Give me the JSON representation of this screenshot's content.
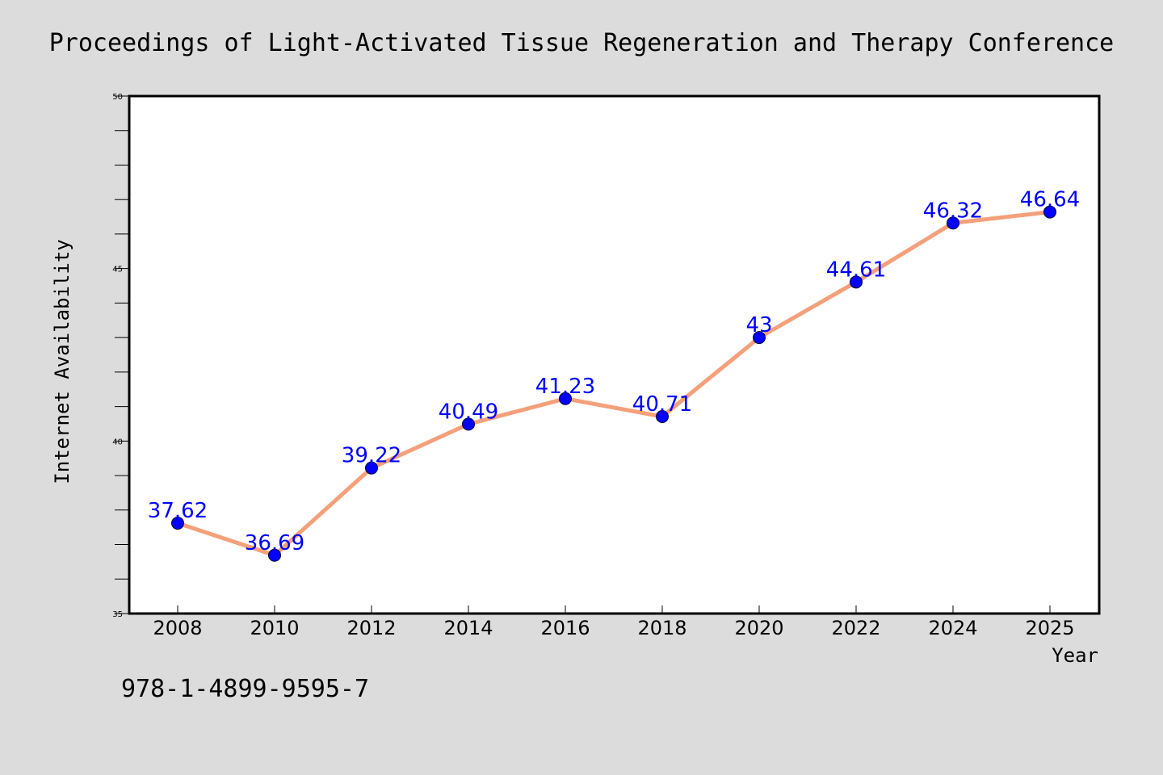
{
  "chart_data": {
    "type": "line",
    "title": "Proceedings of Light-Activated Tissue Regeneration and Therapy Conference",
    "xlabel": "Year",
    "ylabel": "Internet Availability",
    "categories": [
      "2008",
      "2010",
      "2012",
      "2014",
      "2016",
      "2018",
      "2020",
      "2022",
      "2024",
      "2025"
    ],
    "series": [
      {
        "values": [
          37.62,
          36.69,
          39.22,
          40.49,
          41.23,
          40.71,
          43,
          44.61,
          46.32,
          46.64
        ],
        "data_labels": [
          "37.62",
          "36.69",
          "39.22",
          "40.49",
          "41.23",
          "40.71",
          "43",
          "44.61",
          "46.32",
          "46.64"
        ]
      }
    ],
    "ylim": [
      35,
      50
    ],
    "yticks": [
      "35",
      "40",
      "45",
      "50"
    ],
    "grid": false,
    "legend": "none",
    "colors": {
      "line": "#f4a07a",
      "marker": "#0000ff",
      "data_label": "#0000ff",
      "background": "#dcdcdc",
      "plot_area": "#ffffff"
    }
  },
  "footer_text": "978-1-4899-9595-7"
}
